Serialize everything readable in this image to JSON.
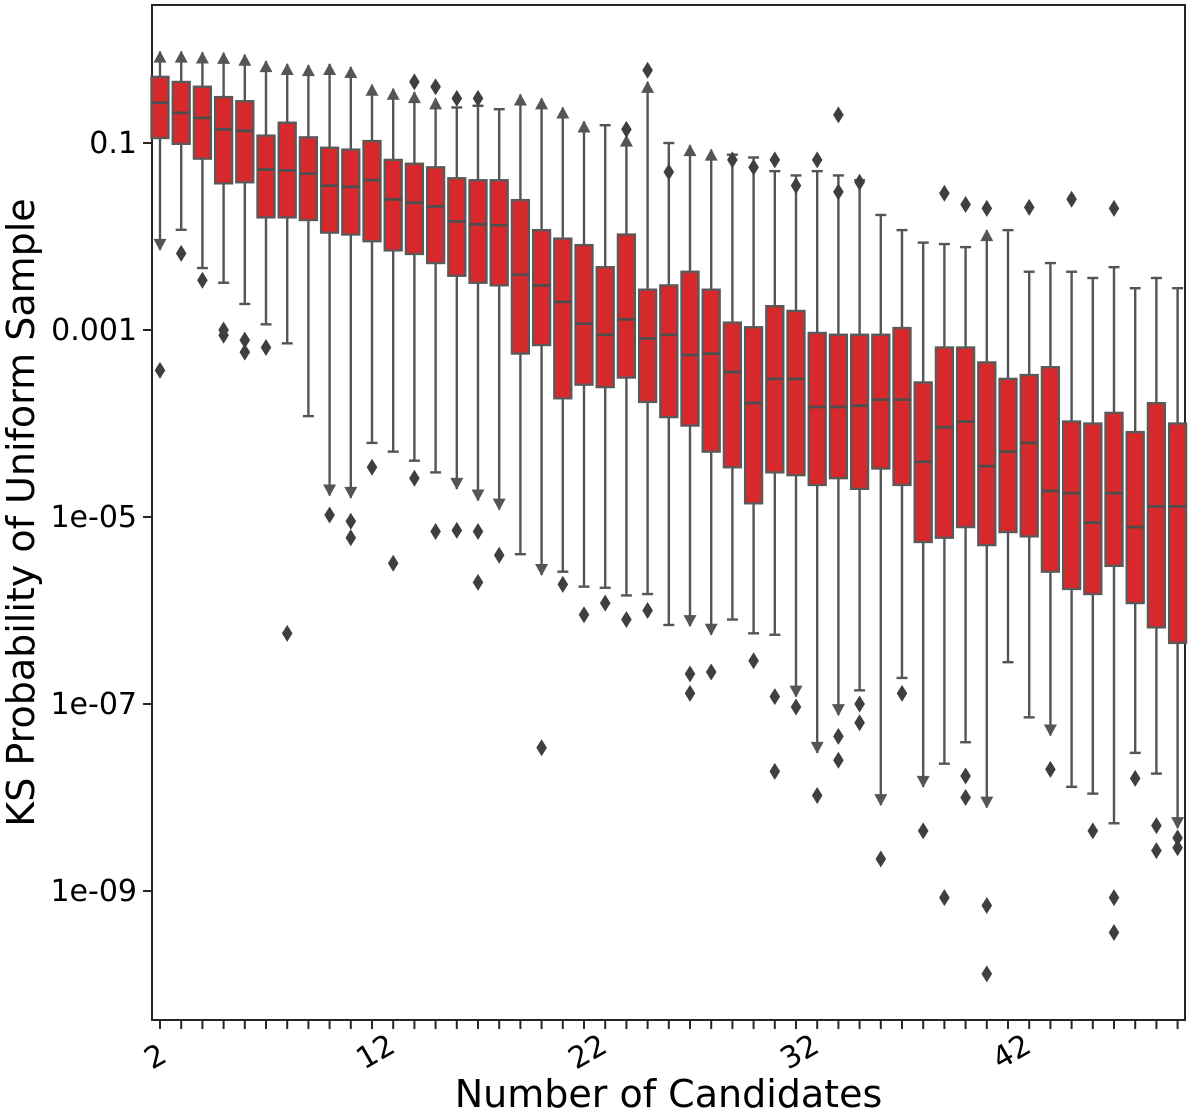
{
  "chart_data": {
    "type": "box",
    "title": "",
    "xlabel": "Number of Candidates",
    "ylabel": "KS Probability of Uniform Sample",
    "yscale": "log",
    "ylim": [
      4e-11,
      3
    ],
    "x_range": [
      2,
      50
    ],
    "x_minor_step": 1,
    "grid": false,
    "legend": "none",
    "yticks": [
      {
        "value": 0.1,
        "label": "0.1"
      },
      {
        "value": 0.001,
        "label": "0.001"
      },
      {
        "value": 1e-05,
        "label": "1e-05"
      },
      {
        "value": 1e-07,
        "label": "1e-07"
      },
      {
        "value": 1e-09,
        "label": "1e-09"
      }
    ],
    "xticks": [
      {
        "value": 2,
        "label": "2"
      },
      {
        "value": 12,
        "label": "12"
      },
      {
        "value": 22,
        "label": "22"
      },
      {
        "value": 32,
        "label": "32"
      },
      {
        "value": 42,
        "label": "42"
      }
    ],
    "colors": {
      "box_fill": "#d7292b",
      "box_edge": "#595959",
      "whisker": "#555555",
      "median": "#4d4d4d",
      "outlier": "#3f3f3f",
      "spine": "#262626"
    },
    "boxes": [
      {
        "n": 2,
        "lo": 0.0072,
        "q1": 0.113,
        "med": 0.27,
        "q3": 0.51,
        "hi": 0.95,
        "lo_arrow": true,
        "hi_arrow": true,
        "out_lo": [
          0.00037
        ],
        "out_hi": []
      },
      {
        "n": 3,
        "lo": 0.0118,
        "q1": 0.098,
        "med": 0.21,
        "q3": 0.45,
        "hi": 0.95,
        "lo_arrow": false,
        "hi_arrow": true,
        "out_lo": [
          0.0066
        ],
        "out_hi": []
      },
      {
        "n": 4,
        "lo": 0.0046,
        "q1": 0.068,
        "med": 0.186,
        "q3": 0.4,
        "hi": 0.93,
        "lo_arrow": false,
        "hi_arrow": true,
        "out_lo": [
          0.0034
        ],
        "out_hi": []
      },
      {
        "n": 5,
        "lo": 0.0032,
        "q1": 0.037,
        "med": 0.14,
        "q3": 0.31,
        "hi": 0.92,
        "lo_arrow": false,
        "hi_arrow": true,
        "out_lo": [
          0.001,
          0.00088
        ],
        "out_hi": []
      },
      {
        "n": 6,
        "lo": 0.0019,
        "q1": 0.038,
        "med": 0.135,
        "q3": 0.28,
        "hi": 0.88,
        "lo_arrow": false,
        "hi_arrow": true,
        "out_lo": [
          0.00078,
          0.00058
        ],
        "out_hi": []
      },
      {
        "n": 7,
        "lo": 0.00115,
        "q1": 0.016,
        "med": 0.052,
        "q3": 0.12,
        "hi": 0.75,
        "lo_arrow": false,
        "hi_arrow": true,
        "out_lo": [
          0.00065
        ],
        "out_hi": []
      },
      {
        "n": 8,
        "lo": 0.00072,
        "q1": 0.016,
        "med": 0.051,
        "q3": 0.165,
        "hi": 0.7,
        "lo_arrow": false,
        "hi_arrow": true,
        "out_lo": [
          5.7e-07
        ],
        "out_hi": []
      },
      {
        "n": 9,
        "lo": 0.00012,
        "q1": 0.015,
        "med": 0.047,
        "q3": 0.115,
        "hi": 0.68,
        "lo_arrow": false,
        "hi_arrow": true,
        "out_lo": [],
        "out_hi": []
      },
      {
        "n": 10,
        "lo": 1.7e-05,
        "q1": 0.011,
        "med": 0.035,
        "q3": 0.089,
        "hi": 0.7,
        "lo_arrow": true,
        "hi_arrow": true,
        "out_lo": [
          1.05e-05
        ],
        "out_hi": []
      },
      {
        "n": 11,
        "lo": 1.6e-05,
        "q1": 0.0105,
        "med": 0.034,
        "q3": 0.085,
        "hi": 0.65,
        "lo_arrow": true,
        "hi_arrow": true,
        "out_lo": [
          9e-06,
          6e-06
        ],
        "out_hi": []
      },
      {
        "n": 12,
        "lo": 6.2e-05,
        "q1": 0.0089,
        "med": 0.04,
        "q3": 0.105,
        "hi": 0.42,
        "lo_arrow": false,
        "hi_arrow": true,
        "out_lo": [
          3.4e-05
        ],
        "out_hi": []
      },
      {
        "n": 13,
        "lo": 5e-05,
        "q1": 0.0071,
        "med": 0.025,
        "q3": 0.066,
        "hi": 0.38,
        "lo_arrow": false,
        "hi_arrow": true,
        "out_lo": [
          3.2e-06
        ],
        "out_hi": []
      },
      {
        "n": 14,
        "lo": 4e-05,
        "q1": 0.0065,
        "med": 0.023,
        "q3": 0.06,
        "hi": 0.35,
        "lo_arrow": false,
        "hi_arrow": true,
        "out_lo": [
          2.6e-05
        ],
        "out_hi": [
          0.45
        ]
      },
      {
        "n": 15,
        "lo": 3e-05,
        "q1": 0.0052,
        "med": 0.021,
        "q3": 0.055,
        "hi": 0.3,
        "lo_arrow": false,
        "hi_arrow": true,
        "out_lo": [
          7e-06
        ],
        "out_hi": [
          0.4
        ]
      },
      {
        "n": 16,
        "lo": 2e-05,
        "q1": 0.0038,
        "med": 0.0145,
        "q3": 0.042,
        "hi": 0.24,
        "lo_arrow": true,
        "hi_arrow": false,
        "out_lo": [
          7.2e-06
        ],
        "out_hi": [
          0.3
        ]
      },
      {
        "n": 17,
        "lo": 1.5e-05,
        "q1": 0.0032,
        "med": 0.0135,
        "q3": 0.04,
        "hi": 0.25,
        "lo_arrow": true,
        "hi_arrow": false,
        "out_lo": [
          7e-06,
          2e-06
        ],
        "out_hi": [
          0.3
        ]
      },
      {
        "n": 18,
        "lo": 1.2e-05,
        "q1": 0.003,
        "med": 0.0132,
        "q3": 0.04,
        "hi": 0.23,
        "lo_arrow": true,
        "hi_arrow": false,
        "out_lo": [
          3.9e-06
        ],
        "out_hi": []
      },
      {
        "n": 19,
        "lo": 4e-06,
        "q1": 0.00056,
        "med": 0.0039,
        "q3": 0.0245,
        "hi": 0.33,
        "lo_arrow": false,
        "hi_arrow": true,
        "out_lo": [],
        "out_hi": []
      },
      {
        "n": 20,
        "lo": 2.4e-06,
        "q1": 0.00069,
        "med": 0.003,
        "q3": 0.0117,
        "hi": 0.3,
        "lo_arrow": true,
        "hi_arrow": true,
        "out_lo": [
          3.4e-08
        ],
        "out_hi": []
      },
      {
        "n": 21,
        "lo": 2.6e-06,
        "q1": 0.000186,
        "med": 0.002,
        "q3": 0.0095,
        "hi": 0.24,
        "lo_arrow": false,
        "hi_arrow": true,
        "out_lo": [
          1.9e-06
        ],
        "out_hi": []
      },
      {
        "n": 22,
        "lo": 1.8e-06,
        "q1": 0.00026,
        "med": 0.00117,
        "q3": 0.0081,
        "hi": 0.17,
        "lo_arrow": false,
        "hi_arrow": true,
        "out_lo": [
          9e-07
        ],
        "out_hi": []
      },
      {
        "n": 23,
        "lo": 1.75e-06,
        "q1": 0.000245,
        "med": 0.00089,
        "q3": 0.0047,
        "hi": 0.155,
        "lo_arrow": false,
        "hi_arrow": false,
        "out_lo": [
          1.2e-06
        ],
        "out_hi": []
      },
      {
        "n": 24,
        "lo": 1.45e-06,
        "q1": 0.00031,
        "med": 0.0013,
        "q3": 0.0105,
        "hi": 0.12,
        "lo_arrow": false,
        "hi_arrow": true,
        "out_lo": [
          8e-07
        ],
        "out_hi": [
          0.14
        ]
      },
      {
        "n": 25,
        "lo": 1.5e-06,
        "q1": 0.00017,
        "med": 0.00081,
        "q3": 0.0027,
        "hi": 0.45,
        "lo_arrow": false,
        "hi_arrow": true,
        "out_lo": [
          1e-06
        ],
        "out_hi": [
          0.6
        ]
      },
      {
        "n": 26,
        "lo": 7e-07,
        "q1": 0.000117,
        "med": 0.00089,
        "q3": 0.003,
        "hi": 0.1,
        "lo_arrow": false,
        "hi_arrow": false,
        "out_lo": [],
        "out_hi": [
          0.049
        ]
      },
      {
        "n": 27,
        "lo": 6.8e-07,
        "q1": 9.5e-05,
        "med": 0.00054,
        "q3": 0.0042,
        "hi": 0.095,
        "lo_arrow": true,
        "hi_arrow": true,
        "out_lo": [
          2.1e-07,
          1.3e-07
        ],
        "out_hi": []
      },
      {
        "n": 28,
        "lo": 5.5e-07,
        "q1": 5e-05,
        "med": 0.00056,
        "q3": 0.0027,
        "hi": 0.085,
        "lo_arrow": true,
        "hi_arrow": true,
        "out_lo": [
          2.2e-07
        ],
        "out_hi": []
      },
      {
        "n": 29,
        "lo": 8e-07,
        "q1": 3.4e-05,
        "med": 0.000355,
        "q3": 0.0012,
        "hi": 0.075,
        "lo_arrow": false,
        "hi_arrow": false,
        "out_lo": [],
        "out_hi": [
          0.066
        ]
      },
      {
        "n": 30,
        "lo": 5.7e-07,
        "q1": 1.4e-05,
        "med": 0.000166,
        "q3": 0.00107,
        "hi": 0.07,
        "lo_arrow": false,
        "hi_arrow": false,
        "out_lo": [
          2.9e-07
        ],
        "out_hi": [
          0.055
        ]
      },
      {
        "n": 31,
        "lo": 5.5e-07,
        "q1": 3e-05,
        "med": 0.0003,
        "q3": 0.0018,
        "hi": 0.05,
        "lo_arrow": false,
        "hi_arrow": false,
        "out_lo": [
          1.2e-07,
          1.9e-08
        ],
        "out_hi": [
          0.066
        ]
      },
      {
        "n": 32,
        "lo": 1.2e-07,
        "q1": 2.8e-05,
        "med": 0.0003,
        "q3": 0.0016,
        "hi": 0.045,
        "lo_arrow": true,
        "hi_arrow": false,
        "out_lo": [
          9.3e-08
        ],
        "out_hi": [
          0.035
        ]
      },
      {
        "n": 33,
        "lo": 3e-08,
        "q1": 2.2e-05,
        "med": 0.00015,
        "q3": 0.00093,
        "hi": 0.05,
        "lo_arrow": true,
        "hi_arrow": false,
        "out_lo": [
          1.05e-08
        ],
        "out_hi": [
          0.066
        ]
      },
      {
        "n": 34,
        "lo": 7.6e-08,
        "q1": 2.6e-05,
        "med": 0.00015,
        "q3": 0.00089,
        "hi": 0.045,
        "lo_arrow": true,
        "hi_arrow": false,
        "out_lo": [
          4.5e-08,
          2.5e-08
        ],
        "out_hi": [
          0.2,
          0.03
        ]
      },
      {
        "n": 35,
        "lo": 1.4e-07,
        "q1": 2e-05,
        "med": 0.000155,
        "q3": 0.00089,
        "hi": 0.04,
        "lo_arrow": false,
        "hi_arrow": false,
        "out_lo": [
          1e-07,
          6.3e-08
        ],
        "out_hi": [
          0.038
        ]
      },
      {
        "n": 36,
        "lo": 8.3e-09,
        "q1": 3.3e-05,
        "med": 0.00018,
        "q3": 0.00089,
        "hi": 0.017,
        "lo_arrow": true,
        "hi_arrow": false,
        "out_lo": [
          2.2e-09
        ],
        "out_hi": []
      },
      {
        "n": 37,
        "lo": 1.9e-07,
        "q1": 2.2e-05,
        "med": 0.00018,
        "q3": 0.00105,
        "hi": 0.0117,
        "lo_arrow": false,
        "hi_arrow": false,
        "out_lo": [
          1.3e-07
        ],
        "out_hi": []
      },
      {
        "n": 38,
        "lo": 1.3e-08,
        "q1": 5.4e-06,
        "med": 3.9e-05,
        "q3": 0.000275,
        "hi": 0.0086,
        "lo_arrow": true,
        "hi_arrow": false,
        "out_lo": [
          4.4e-09
        ],
        "out_hi": []
      },
      {
        "n": 39,
        "lo": 2.3e-08,
        "q1": 6e-06,
        "med": 9.1e-05,
        "q3": 0.00065,
        "hi": 0.0083,
        "lo_arrow": false,
        "hi_arrow": false,
        "out_lo": [
          8.5e-10
        ],
        "out_hi": [
          0.029
        ]
      },
      {
        "n": 40,
        "lo": 3.9e-08,
        "q1": 7.8e-06,
        "med": 0.000105,
        "q3": 0.00065,
        "hi": 0.0077,
        "lo_arrow": false,
        "hi_arrow": false,
        "out_lo": [
          1.7e-08,
          1e-08
        ],
        "out_hi": [
          0.022
        ]
      },
      {
        "n": 41,
        "lo": 7.8e-09,
        "q1": 5e-06,
        "med": 3.5e-05,
        "q3": 0.00045,
        "hi": 0.0117,
        "lo_arrow": true,
        "hi_arrow": true,
        "out_lo": [
          7e-10,
          1.3e-10
        ],
        "out_hi": [
          0.02
        ]
      },
      {
        "n": 42,
        "lo": 2.8e-07,
        "q1": 6.9e-06,
        "med": 5e-05,
        "q3": 0.0003,
        "hi": 0.0117,
        "lo_arrow": false,
        "hi_arrow": false,
        "out_lo": [],
        "out_hi": []
      },
      {
        "n": 43,
        "lo": 7.2e-08,
        "q1": 6.2e-06,
        "med": 6.2e-05,
        "q3": 0.00033,
        "hi": 0.0042,
        "lo_arrow": false,
        "hi_arrow": false,
        "out_lo": [],
        "out_hi": [
          0.0205
        ]
      },
      {
        "n": 44,
        "lo": 4.6e-08,
        "q1": 2.6e-06,
        "med": 1.9e-05,
        "q3": 0.0004,
        "hi": 0.0052,
        "lo_arrow": true,
        "hi_arrow": false,
        "out_lo": [
          2e-08
        ],
        "out_hi": []
      },
      {
        "n": 45,
        "lo": 1.3e-08,
        "q1": 1.7e-06,
        "med": 1.8e-05,
        "q3": 0.000105,
        "hi": 0.0042,
        "lo_arrow": false,
        "hi_arrow": false,
        "out_lo": [],
        "out_hi": [
          0.025
        ]
      },
      {
        "n": 46,
        "lo": 1.1e-08,
        "q1": 1.5e-06,
        "med": 8.7e-06,
        "q3": 0.0001,
        "hi": 0.0036,
        "lo_arrow": false,
        "hi_arrow": false,
        "out_lo": [
          4.4e-09
        ],
        "out_hi": []
      },
      {
        "n": 47,
        "lo": 5.3e-09,
        "q1": 3e-06,
        "med": 1.8e-05,
        "q3": 0.00013,
        "hi": 0.0047,
        "lo_arrow": false,
        "hi_arrow": false,
        "out_lo": [
          8.5e-10,
          3.6e-10
        ],
        "out_hi": [
          0.02
        ]
      },
      {
        "n": 48,
        "lo": 3e-08,
        "q1": 1.2e-06,
        "med": 7.8e-06,
        "q3": 8.1e-05,
        "hi": 0.0028,
        "lo_arrow": false,
        "hi_arrow": false,
        "out_lo": [
          1.6e-08
        ],
        "out_hi": []
      },
      {
        "n": 49,
        "lo": 1.8e-08,
        "q1": 6.6e-07,
        "med": 1.3e-05,
        "q3": 0.000165,
        "hi": 0.0036,
        "lo_arrow": false,
        "hi_arrow": false,
        "out_lo": [
          5e-09,
          2.7e-09
        ],
        "out_hi": []
      },
      {
        "n": 50,
        "lo": 4.7e-09,
        "q1": 4.5e-07,
        "med": 1.3e-05,
        "q3": 0.0001,
        "hi": 0.0028,
        "lo_arrow": true,
        "hi_arrow": false,
        "out_lo": [
          3.7e-09,
          2.9e-09
        ],
        "out_hi": []
      }
    ]
  }
}
